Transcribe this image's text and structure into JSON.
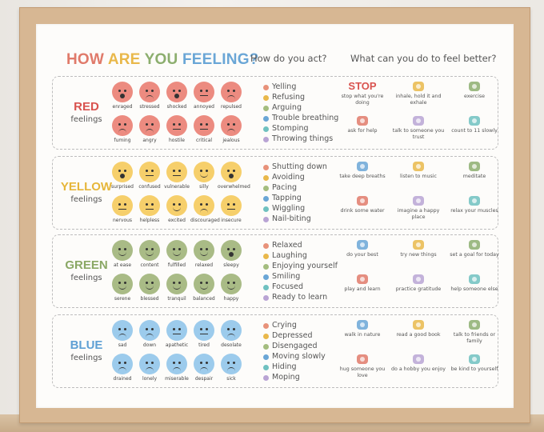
{
  "poster": {
    "title_words": [
      {
        "text": "HOW ",
        "color": "#e07a6a"
      },
      {
        "text": "ARE ",
        "color": "#e9b84a"
      },
      {
        "text": "YOU ",
        "color": "#8cae6e"
      },
      {
        "text": "FEELING?",
        "color": "#6aa6d6"
      }
    ],
    "subhead_act": "How do you act?",
    "subhead_better": "What can you do to feel better?"
  },
  "sections": [
    {
      "title": "RED",
      "subtitle": "feelings",
      "color": "#d9534f",
      "face_color": "#ec8b80",
      "faces_top": [
        "enraged",
        "stressed",
        "shocked",
        "annoyed",
        "repulsed"
      ],
      "faces_bottom": [
        "fuming",
        "angry",
        "hostile",
        "critical",
        "jealous"
      ],
      "acts": [
        "Yelling",
        "Refusing",
        "Arguing",
        "Trouble breathing",
        "Stomping",
        "Throwing things"
      ],
      "tips_top": [
        "stop what you're doing",
        "inhale, hold it and exhale",
        "exercise"
      ],
      "tips_bottom": [
        "ask for help",
        "talk to someone you trust",
        "count to 11 slowly"
      ],
      "stop_word": "STOP"
    },
    {
      "title": "YELLOW",
      "subtitle": "feelings",
      "color": "#e6b63a",
      "face_color": "#f6cf6b",
      "faces_top": [
        "surprised",
        "confused",
        "vulnerable",
        "silly",
        "overwhelmed"
      ],
      "faces_bottom": [
        "nervous",
        "helpless",
        "excited",
        "discouraged",
        "insecure"
      ],
      "acts": [
        "Shutting down",
        "Avoiding",
        "Pacing",
        "Tapping",
        "Wiggling",
        "Nail-biting"
      ],
      "tips_top": [
        "take deep breaths",
        "listen to music",
        "meditate"
      ],
      "tips_bottom": [
        "drink some water",
        "imagine a happy place",
        "relax your muscles"
      ]
    },
    {
      "title": "GREEN",
      "subtitle": "feelings",
      "color": "#8aa865",
      "face_color": "#a9bb86",
      "faces_top": [
        "at ease",
        "content",
        "fulfilled",
        "relaxed",
        "sleepy"
      ],
      "faces_bottom": [
        "serene",
        "blessed",
        "tranquil",
        "balanced",
        "happy"
      ],
      "acts": [
        "Relaxed",
        "Laughing",
        "Enjoying yourself",
        "Smiling",
        "Focused",
        "Ready to learn"
      ],
      "tips_top": [
        "do your best",
        "try new things",
        "set a goal for today"
      ],
      "tips_bottom": [
        "play and learn",
        "practice gratitude",
        "help someone else"
      ]
    },
    {
      "title": "BLUE",
      "subtitle": "feelings",
      "color": "#5fa0d4",
      "face_color": "#9ccbec",
      "faces_top": [
        "sad",
        "down",
        "apathetic",
        "tired",
        "desolate"
      ],
      "faces_bottom": [
        "drained",
        "lonely",
        "miserable",
        "despair",
        "sick"
      ],
      "acts": [
        "Crying",
        "Depressed",
        "Disengaged",
        "Moving slowly",
        "Hiding",
        "Moping"
      ],
      "tips_top": [
        "walk in nature",
        "read a good book",
        "talk to friends or family"
      ],
      "tips_bottom": [
        "hug someone you love",
        "do a hobby you enjoy",
        "be kind to yourself"
      ]
    }
  ],
  "act_dot_colors": [
    "#e8927a",
    "#e9b84a",
    "#a4bd7f",
    "#6aa6d6",
    "#6fc1c0",
    "#b9a4d4"
  ],
  "tip_icon_colors": [
    "#6aa6d6",
    "#e9b84a",
    "#8cae6e",
    "#e07a6a",
    "#b9a4d4",
    "#6fc1c0"
  ]
}
